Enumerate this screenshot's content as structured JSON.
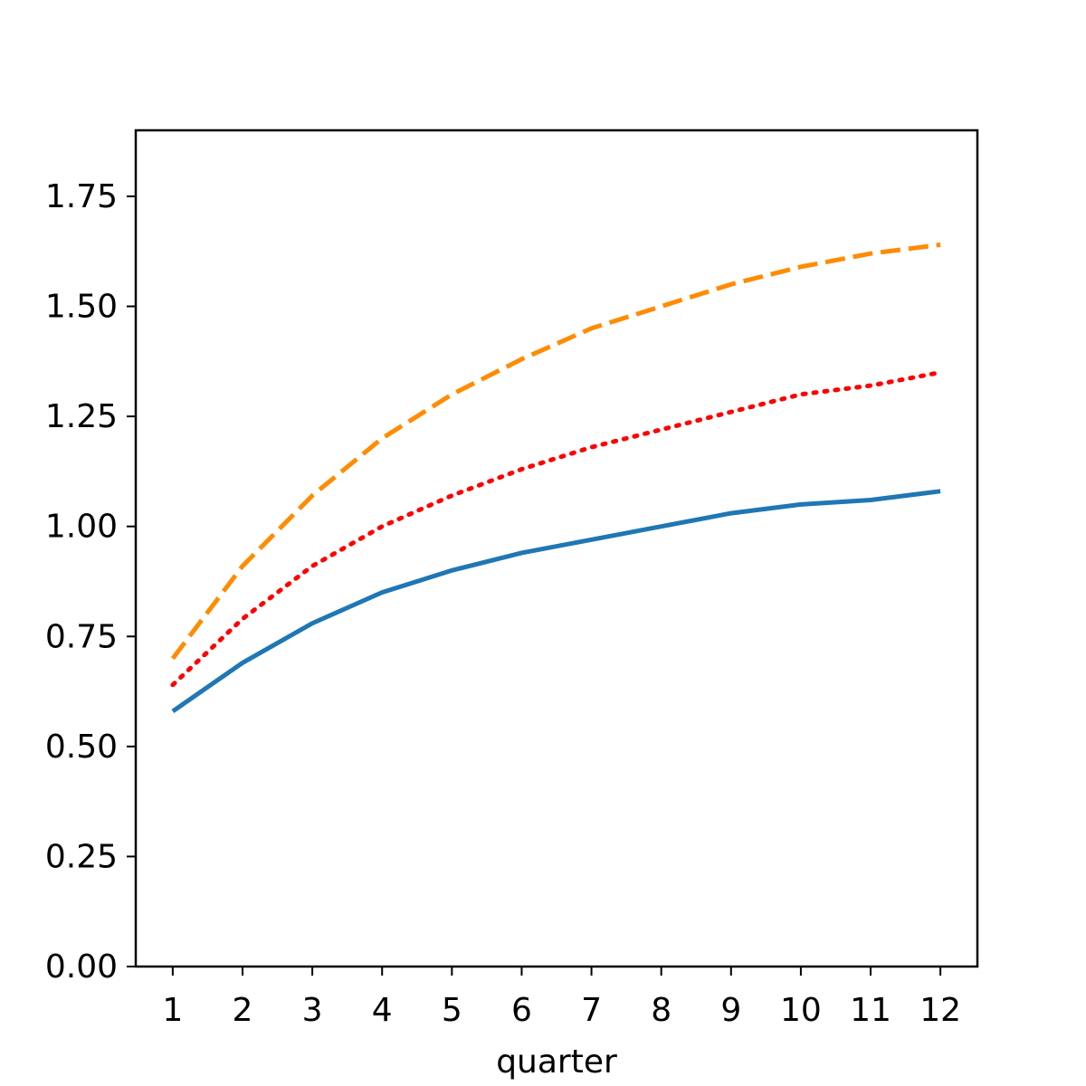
{
  "chart_data": {
    "type": "line",
    "title": "",
    "xlabel": "quarter",
    "ylabel": "",
    "x": [
      1,
      2,
      3,
      4,
      5,
      6,
      7,
      8,
      9,
      10,
      11,
      12
    ],
    "xticks": [
      "1",
      "2",
      "3",
      "4",
      "5",
      "6",
      "7",
      "8",
      "9",
      "10",
      "11",
      "12"
    ],
    "xlim": [
      0.47,
      12.53
    ],
    "ylim": [
      0,
      1.9
    ],
    "yticks": [
      0,
      0.25,
      0.5,
      0.75,
      1.0,
      1.25,
      1.5,
      1.75
    ],
    "ytick_labels": [
      "0.00",
      "0.25",
      "0.50",
      "0.75",
      "1.00",
      "1.25",
      "1.50",
      "1.75"
    ],
    "grid": false,
    "legend": "none",
    "series": [
      {
        "style": "solid",
        "color": "#1f77b4",
        "values": [
          0.58,
          0.69,
          0.78,
          0.85,
          0.9,
          0.94,
          0.97,
          1.0,
          1.03,
          1.05,
          1.06,
          1.08
        ]
      },
      {
        "style": "dotted",
        "color": "#ff0000",
        "values": [
          0.64,
          0.79,
          0.91,
          1.0,
          1.07,
          1.13,
          1.18,
          1.22,
          1.26,
          1.3,
          1.32,
          1.35
        ]
      },
      {
        "style": "dashed",
        "color": "#ff8c00",
        "values": [
          0.7,
          0.91,
          1.07,
          1.2,
          1.3,
          1.38,
          1.45,
          1.5,
          1.55,
          1.59,
          1.62,
          1.64
        ]
      }
    ]
  }
}
